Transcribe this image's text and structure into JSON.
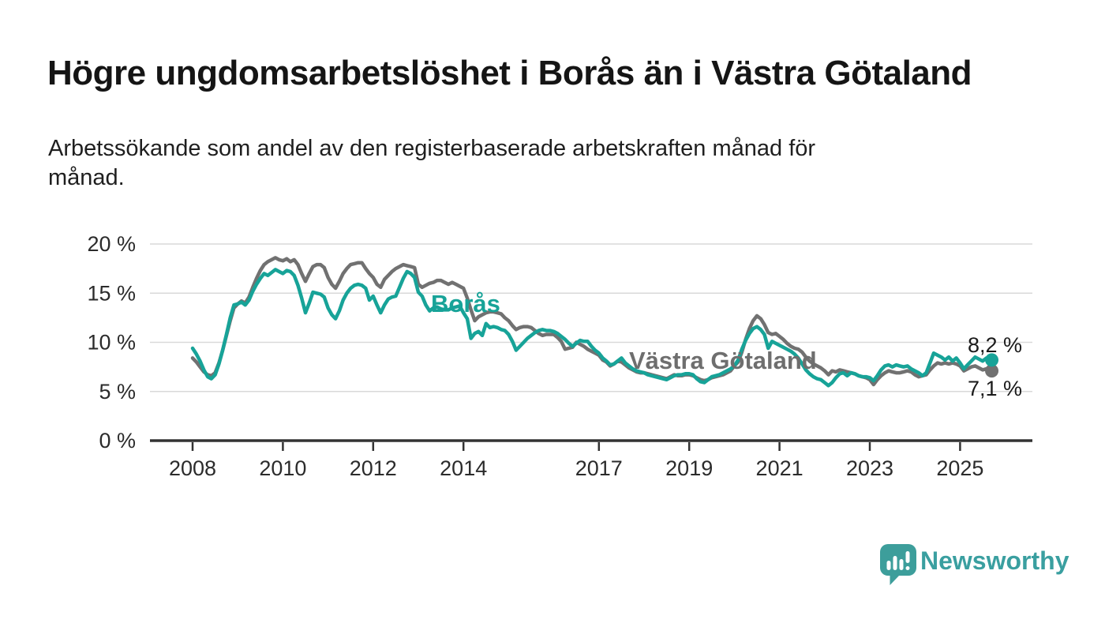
{
  "title": "Högre ungdomsarbetslöshet i Borås än i Västra Götaland",
  "subtitle": {
    "full": "Arbetssökande som andel av den registerbaserade arbetskraften månad för månad.",
    "lines": [
      "Arbetssökande som andel av den registerbaserade arbetskraften månad för",
      "månad."
    ]
  },
  "branding": {
    "logo_text": "Newsworthy",
    "logo_color": "#3a9fa0",
    "logo_icon": "speech-bubble-bar-chart-icon"
  },
  "chart_data": {
    "type": "line",
    "unit": "%",
    "x_start_year": 2008,
    "x_interval": "monthly",
    "x_end_approx": "2025-09",
    "ylim": [
      0,
      20
    ],
    "grid": true,
    "ytick_values": [
      0,
      5,
      10,
      15,
      20
    ],
    "ytick_labels": [
      "0 %",
      "5 %",
      "10 %",
      "15 %",
      "20 %"
    ],
    "xtick_years": [
      2008,
      2010,
      2012,
      2014,
      2017,
      2019,
      2021,
      2023,
      2025
    ],
    "xtick_labels": [
      "2008",
      "2010",
      "2012",
      "2014",
      "2017",
      "2019",
      "2021",
      "2023",
      "2025"
    ],
    "colors": {
      "grid": "#d9d9d9",
      "axis": "#333333",
      "tick_text": "#2b2b2b"
    },
    "series": [
      {
        "name": "Västra Götaland",
        "color": "#717171",
        "end_label": "7,1 %",
        "end_value": 7.1,
        "values": [
          8.4,
          8.0,
          7.5,
          7.0,
          6.7,
          6.6,
          6.9,
          7.9,
          9.2,
          10.7,
          12.2,
          13.5,
          13.9,
          14.2,
          14.0,
          14.6,
          15.6,
          16.5,
          17.3,
          17.9,
          18.2,
          18.4,
          18.6,
          18.4,
          18.3,
          18.5,
          18.2,
          18.4,
          17.9,
          17.0,
          16.2,
          17.0,
          17.7,
          17.9,
          17.9,
          17.6,
          16.6,
          15.9,
          15.5,
          16.2,
          17.0,
          17.5,
          17.9,
          18.0,
          18.1,
          18.1,
          17.5,
          17.0,
          16.6,
          15.9,
          15.6,
          16.4,
          16.8,
          17.2,
          17.5,
          17.7,
          17.9,
          17.8,
          17.7,
          17.6,
          15.9,
          15.6,
          15.8,
          16.0,
          16.1,
          16.3,
          16.3,
          16.1,
          15.9,
          16.1,
          15.9,
          15.7,
          15.5,
          14.5,
          13.3,
          12.2,
          12.6,
          12.8,
          13.0,
          13.1,
          13.1,
          13.0,
          12.9,
          12.5,
          12.2,
          11.7,
          11.3,
          11.5,
          11.6,
          11.6,
          11.5,
          11.2,
          10.9,
          10.7,
          10.8,
          10.8,
          10.8,
          10.5,
          10.1,
          9.3,
          9.4,
          9.5,
          10.0,
          9.8,
          9.6,
          9.3,
          9.1,
          8.9,
          8.7,
          8.2,
          8.0,
          7.6,
          7.8,
          8.1,
          8.0,
          7.7,
          7.4,
          7.2,
          7.0,
          6.9,
          6.9,
          6.8,
          6.7,
          6.6,
          6.5,
          6.4,
          6.3,
          6.5,
          6.7,
          6.6,
          6.6,
          6.7,
          6.7,
          6.6,
          6.4,
          6.2,
          6.1,
          6.2,
          6.4,
          6.5,
          6.6,
          6.7,
          6.9,
          7.1,
          7.6,
          8.0,
          9.0,
          10.3,
          11.4,
          12.2,
          12.7,
          12.4,
          11.8,
          11.0,
          10.8,
          10.9,
          10.6,
          10.3,
          9.9,
          9.6,
          9.4,
          9.3,
          9.0,
          8.5,
          8.1,
          7.8,
          7.6,
          7.4,
          7.1,
          6.7,
          7.1,
          7.0,
          7.2,
          7.1,
          7.0,
          6.9,
          6.8,
          6.6,
          6.5,
          6.4,
          6.2,
          5.7,
          6.2,
          6.6,
          6.9,
          7.1,
          7.0,
          6.9,
          6.9,
          7.0,
          7.1,
          7.0,
          6.7,
          6.5,
          6.6,
          6.7,
          7.2,
          7.6,
          7.9,
          7.8,
          7.9,
          7.8,
          7.9,
          7.8,
          7.6,
          7.1,
          7.3,
          7.5,
          7.6,
          7.4,
          7.2,
          7.3,
          7.1
        ]
      },
      {
        "name": "Borås",
        "color": "#17a398",
        "end_label": "8,2 %",
        "end_value": 8.2,
        "values": [
          9.4,
          8.8,
          8.1,
          7.2,
          6.5,
          6.3,
          6.7,
          7.8,
          9.2,
          10.8,
          12.5,
          13.8,
          13.9,
          14.1,
          13.8,
          14.3,
          15.2,
          15.9,
          16.5,
          17.0,
          16.8,
          17.1,
          17.4,
          17.2,
          17.0,
          17.3,
          17.2,
          16.8,
          15.8,
          14.5,
          13.0,
          14.0,
          15.1,
          15.0,
          14.9,
          14.6,
          13.5,
          12.8,
          12.4,
          13.2,
          14.3,
          15.0,
          15.5,
          15.8,
          15.9,
          15.8,
          15.5,
          14.3,
          14.7,
          13.8,
          13.0,
          13.8,
          14.4,
          14.6,
          14.7,
          15.6,
          16.5,
          17.2,
          17.0,
          16.6,
          15.1,
          14.7,
          13.8,
          13.2,
          13.5,
          13.6,
          13.4,
          13.3,
          13.3,
          13.5,
          13.6,
          13.7,
          13.0,
          12.4,
          10.4,
          10.9,
          11.1,
          10.7,
          11.9,
          11.5,
          11.6,
          11.5,
          11.3,
          11.2,
          10.8,
          10.1,
          9.2,
          9.6,
          10.0,
          10.4,
          10.7,
          11.0,
          11.2,
          11.3,
          11.2,
          11.2,
          11.1,
          10.9,
          10.6,
          10.3,
          9.9,
          9.6,
          9.9,
          10.2,
          10.1,
          10.1,
          9.6,
          9.2,
          8.9,
          8.4,
          8.1,
          7.7,
          7.8,
          8.1,
          8.4,
          7.9,
          7.6,
          7.3,
          7.1,
          7.0,
          6.9,
          6.7,
          6.6,
          6.5,
          6.4,
          6.3,
          6.2,
          6.4,
          6.6,
          6.7,
          6.7,
          6.8,
          6.8,
          6.7,
          6.3,
          6.0,
          5.9,
          6.2,
          6.5,
          6.6,
          6.7,
          6.9,
          7.1,
          7.3,
          7.6,
          8.2,
          9.3,
          10.2,
          10.9,
          11.4,
          11.6,
          11.3,
          10.8,
          9.4,
          10.1,
          9.9,
          9.7,
          9.5,
          9.3,
          9.1,
          8.8,
          8.4,
          7.8,
          7.2,
          6.8,
          6.5,
          6.3,
          6.2,
          5.9,
          5.6,
          5.9,
          6.4,
          6.8,
          6.9,
          6.6,
          6.9,
          6.8,
          6.6,
          6.5,
          6.5,
          6.4,
          6.1,
          6.6,
          7.2,
          7.6,
          7.7,
          7.5,
          7.7,
          7.6,
          7.5,
          7.6,
          7.3,
          7.1,
          6.9,
          6.6,
          6.9,
          7.9,
          8.9,
          8.7,
          8.5,
          8.2,
          8.5,
          8.1,
          8.4,
          7.9,
          7.3,
          7.7,
          8.1,
          8.5,
          8.3,
          8.1,
          8.4,
          8.2
        ]
      }
    ]
  }
}
